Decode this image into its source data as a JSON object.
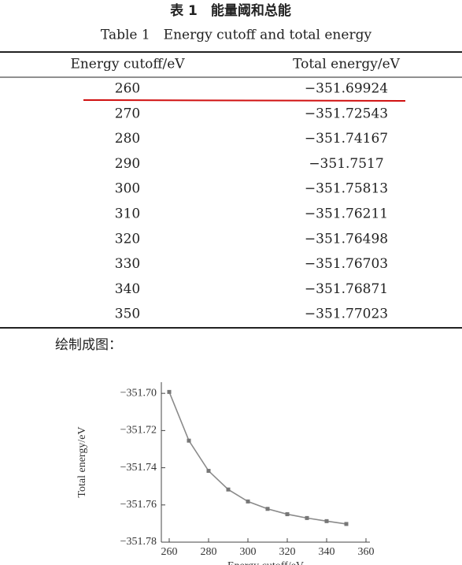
{
  "header": {
    "title_cn": "表 1　能量阈和总能",
    "title_en": "Table 1　Energy cutoff and total energy"
  },
  "table": {
    "columns": [
      "Energy cutoff/eV",
      "Total energy/eV"
    ],
    "rows": [
      [
        "260",
        "−351.69924"
      ],
      [
        "270",
        "−351.72543"
      ],
      [
        "280",
        "−351.74167"
      ],
      [
        "290",
        "−351.7517"
      ],
      [
        "300",
        "−351.75813"
      ],
      [
        "310",
        "−351.76211"
      ],
      [
        "320",
        "−351.76498"
      ],
      [
        "330",
        "−351.76703"
      ],
      [
        "340",
        "−351.76871"
      ],
      [
        "350",
        "−351.77023"
      ]
    ]
  },
  "caption": "绘制成图：",
  "chart_data": {
    "type": "line",
    "xlabel": "Energy cutoff/eV",
    "ylabel": "Total energy/eV",
    "x": [
      260,
      270,
      280,
      290,
      300,
      310,
      320,
      330,
      340,
      350
    ],
    "values": [
      -351.69924,
      -351.72543,
      -351.74167,
      -351.7517,
      -351.75813,
      -351.76211,
      -351.76498,
      -351.76703,
      -351.76871,
      -351.77023
    ],
    "color": "#8a8a8a",
    "xlim": [
      256,
      362
    ],
    "xticks": [
      260,
      280,
      300,
      320,
      340,
      360
    ],
    "ylim": [
      -351.78,
      -351.694
    ],
    "yticks": [
      {
        "value": -351.7,
        "label": "−351.70"
      },
      {
        "value": -351.72,
        "label": "−351.72"
      },
      {
        "value": -351.74,
        "label": "−351.74"
      },
      {
        "value": -351.76,
        "label": "−351.76"
      },
      {
        "value": -351.78,
        "label": "−351.78"
      }
    ]
  }
}
